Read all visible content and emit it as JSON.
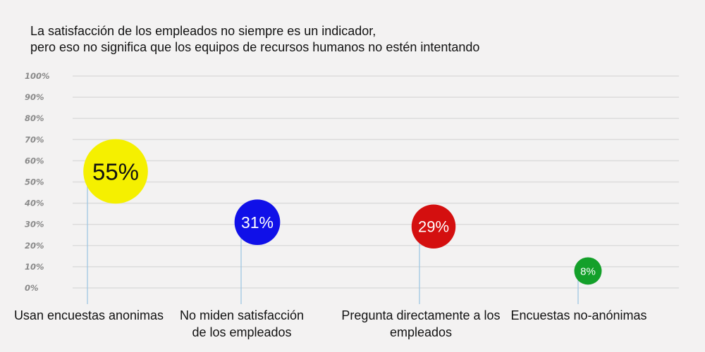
{
  "chart_data": {
    "type": "scatter",
    "title": [
      "La satisfacción de los empleados no siempre es un indicador,",
      "pero eso no significa que los equipos de recursos humanos no estén intentando"
    ],
    "ylim": [
      0,
      100
    ],
    "yticks": [
      "0%",
      "10%",
      "20%",
      "30%",
      "40%",
      "50%",
      "60%",
      "70%",
      "80%",
      "90%",
      "100%"
    ],
    "grid": true,
    "points": [
      {
        "category": [
          "Usan encuestas anonimas"
        ],
        "value": 55,
        "label": "55%",
        "color": "#f5f000",
        "text_color": "#111111"
      },
      {
        "category": [
          "No miden satisfacción",
          "de los empleados"
        ],
        "value": 31,
        "label": "31%",
        "color": "#1010e8",
        "text_color": "#ffffff"
      },
      {
        "category": [
          "Pregunta directamente a los",
          "empleados"
        ],
        "value": 29,
        "label": "29%",
        "color": "#d40f0f",
        "text_color": "#ffffff"
      },
      {
        "category": [
          "Encuestas no-anónimas"
        ],
        "value": 8,
        "label": "8%",
        "color": "#14a02a",
        "text_color": "#ffffff"
      }
    ],
    "colors": {
      "grid": "#dcdcdc",
      "stem": "#9fc6e2",
      "background": "#f3f2f2"
    }
  }
}
